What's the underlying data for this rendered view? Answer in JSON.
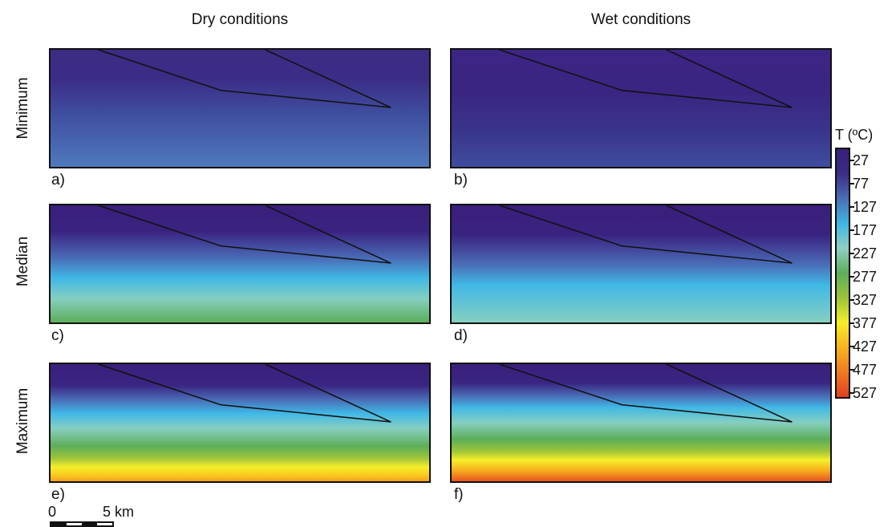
{
  "columns": {
    "dry": "Dry conditions",
    "wet": "Wet conditions"
  },
  "rows": {
    "minimum": "Minimum",
    "median": "Median",
    "maximum": "Maximum"
  },
  "panels": [
    {
      "letter": "a)",
      "column": "dry",
      "row": "minimum"
    },
    {
      "letter": "b)",
      "column": "wet",
      "row": "minimum"
    },
    {
      "letter": "c)",
      "column": "dry",
      "row": "median"
    },
    {
      "letter": "d)",
      "column": "wet",
      "row": "median"
    },
    {
      "letter": "e)",
      "column": "dry",
      "row": "maximum"
    },
    {
      "letter": "f)",
      "column": "wet",
      "row": "maximum"
    }
  ],
  "colorbar": {
    "title": "T (ºC)",
    "ticks": [
      "27",
      "77",
      "127",
      "177",
      "227",
      "277",
      "327",
      "377",
      "427",
      "477",
      "527"
    ],
    "colors": [
      "#3a1f7a",
      "#3b2c88",
      "#4a6fb8",
      "#3fb6e4",
      "#8fd0c2",
      "#5cae5a",
      "#9cc43a",
      "#f6ee2a",
      "#f7b41e",
      "#f07a22",
      "#e2401f"
    ]
  },
  "scalebar": {
    "zero": "0",
    "distance": "5 km"
  }
}
